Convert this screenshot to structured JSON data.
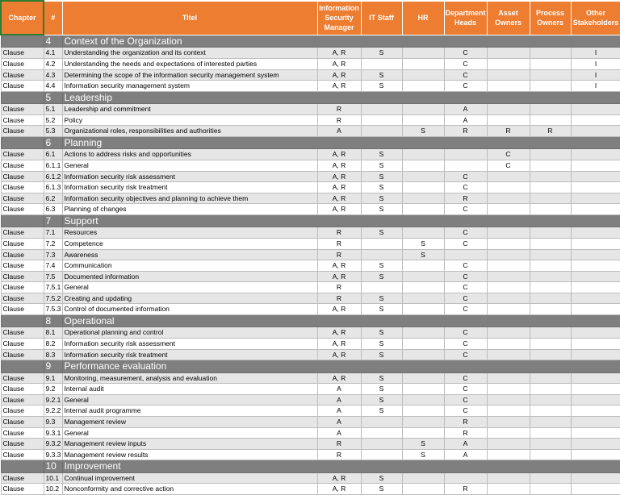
{
  "header": {
    "chapter": "Chapter",
    "num": "#",
    "title": "Titel",
    "ism": "Information Security Manager",
    "it": "IT Staff",
    "hr": "HR",
    "dept": "Department Heads",
    "asset": "Asset Owners",
    "process": "Process Owners",
    "other": "Other Stakeholders"
  },
  "sections": [
    {
      "num": "4",
      "title": "Context of the Organization",
      "rows": [
        [
          "Clause",
          "4.1",
          "Understanding the organization and its context",
          "A, R",
          "S",
          "",
          "C",
          "",
          "",
          "I"
        ],
        [
          "Clause",
          "4.2",
          "Understanding the needs and expectations of interested parties",
          "A, R",
          "",
          "",
          "C",
          "",
          "",
          "I"
        ],
        [
          "Clause",
          "4.3",
          "Determining the scope of the information security management system",
          "A, R",
          "S",
          "",
          "C",
          "",
          "",
          "I"
        ],
        [
          "Clause",
          "4.4",
          "Information security management system",
          "A, R",
          "S",
          "",
          "C",
          "",
          "",
          "I"
        ]
      ]
    },
    {
      "num": "5",
      "title": "Leadership",
      "rows": [
        [
          "Clause",
          "5.1",
          "Leadership and commitment",
          "R",
          "",
          "",
          "A",
          "",
          "",
          ""
        ],
        [
          "Clause",
          "5.2",
          "Policy",
          "R",
          "",
          "",
          "A",
          "",
          "",
          ""
        ],
        [
          "Clause",
          "5.3",
          "Organizational roles, responsibilities and authorities",
          "A",
          "",
          "S",
          "R",
          "R",
          "R",
          ""
        ]
      ]
    },
    {
      "num": "6",
      "title": "Planning",
      "rows": [
        [
          "Clause",
          "6.1",
          "Actions to address risks and opportunities",
          "A, R",
          "S",
          "",
          "",
          "C",
          "",
          ""
        ],
        [
          "Clause",
          "6.1.1",
          "General",
          "A, R",
          "S",
          "",
          "",
          "C",
          "",
          ""
        ],
        [
          "Clause",
          "6.1.2",
          "Information security risk assessment",
          "A, R",
          "S",
          "",
          "C",
          "",
          "",
          ""
        ],
        [
          "Clause",
          "6.1.3",
          "Information security risk treatment",
          "A, R",
          "S",
          "",
          "C",
          "",
          "",
          ""
        ],
        [
          "Clause",
          "6.2",
          "Information security objectives and planning to achieve them",
          "A, R",
          "S",
          "",
          "R",
          "",
          "",
          ""
        ],
        [
          "Clause",
          "6.3",
          "Planning of changes",
          "A, R",
          "S",
          "",
          "C",
          "",
          "",
          ""
        ]
      ]
    },
    {
      "num": "7",
      "title": "Support",
      "rows": [
        [
          "Clause",
          "7.1",
          "Resources",
          "R",
          "S",
          "",
          "C",
          "",
          "",
          ""
        ],
        [
          "Clause",
          "7.2",
          "Competence",
          "R",
          "",
          "S",
          "C",
          "",
          "",
          ""
        ],
        [
          "Clause",
          "7.3",
          "Awareness",
          "R",
          "",
          "S",
          "",
          "",
          "",
          ""
        ],
        [
          "Clause",
          "7.4",
          "Communication",
          "A, R",
          "S",
          "",
          "C",
          "",
          "",
          ""
        ],
        [
          "Clause",
          "7.5",
          "Documented information",
          "A, R",
          "S",
          "",
          "C",
          "",
          "",
          ""
        ],
        [
          "Clause",
          "7.5.1",
          "General",
          "R",
          "",
          "",
          "C",
          "",
          "",
          ""
        ],
        [
          "Clause",
          "7.5.2",
          "Creating and updating",
          "R",
          "S",
          "",
          "C",
          "",
          "",
          ""
        ],
        [
          "Clause",
          "7.5.3",
          "Control of documented information",
          "A, R",
          "S",
          "",
          "C",
          "",
          "",
          ""
        ]
      ]
    },
    {
      "num": "8",
      "title": "Operational",
      "rows": [
        [
          "Clause",
          "8.1",
          "Operational planning and control",
          "A, R",
          "S",
          "",
          "C",
          "",
          "",
          ""
        ],
        [
          "Clause",
          "8.2",
          "Information security risk assessment",
          "A, R",
          "S",
          "",
          "C",
          "",
          "",
          ""
        ],
        [
          "Clause",
          "8.3",
          "Information security risk treatment",
          "A, R",
          "S",
          "",
          "C",
          "",
          "",
          ""
        ]
      ]
    },
    {
      "num": "9",
      "title": "Performance evaluation",
      "rows": [
        [
          "Clause",
          "9.1",
          "Monitoring, measurement, analysis and evaluation",
          "A, R",
          "S",
          "",
          "C",
          "",
          "",
          ""
        ],
        [
          "Clause",
          "9.2",
          "Internal audit",
          "A",
          "S",
          "",
          "C",
          "",
          "",
          ""
        ],
        [
          "Clause",
          "9.2.1",
          "General",
          "A",
          "S",
          "",
          "C",
          "",
          "",
          ""
        ],
        [
          "Clause",
          "9.2.2",
          "Internal audit programme",
          "A",
          "S",
          "",
          "C",
          "",
          "",
          ""
        ],
        [
          "Clause",
          "9.3",
          "Management review",
          "A",
          "",
          "",
          "R",
          "",
          "",
          ""
        ],
        [
          "Clause",
          "9.3.1",
          "General",
          "A",
          "",
          "",
          "R",
          "",
          "",
          ""
        ],
        [
          "Clause",
          "9.3.2",
          "Management review inputs",
          "R",
          "",
          "S",
          "A",
          "",
          "",
          ""
        ],
        [
          "Clause",
          "9.3.3",
          "Management review results",
          "R",
          "",
          "S",
          "A",
          "",
          "",
          ""
        ]
      ]
    },
    {
      "num": "10",
      "title": "Improvement",
      "rows": [
        [
          "Clause",
          "10.1",
          "Continual improvement",
          "A, R",
          "S",
          "",
          "",
          "",
          "",
          ""
        ],
        [
          "Clause",
          "10.2",
          "Nonconformity and corrective action",
          "A, R",
          "S",
          "",
          "R",
          "",
          "",
          ""
        ]
      ]
    }
  ]
}
